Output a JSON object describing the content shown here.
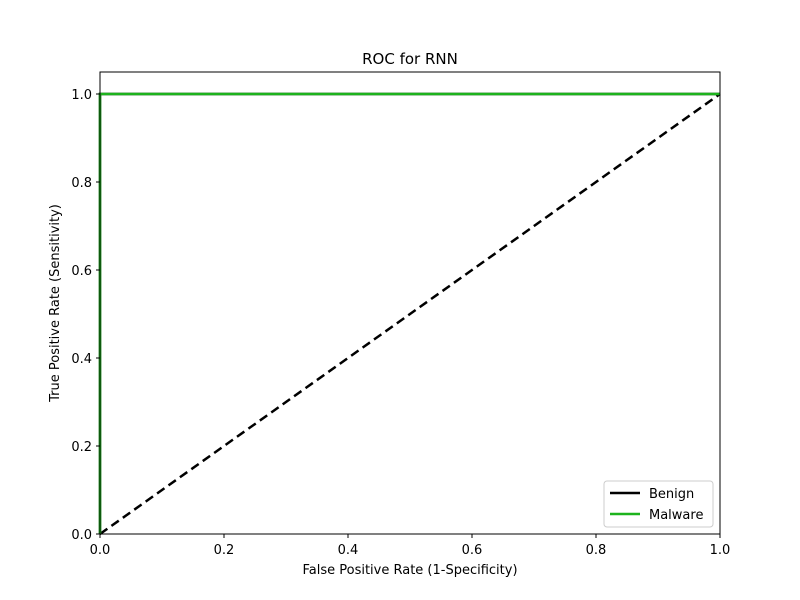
{
  "chart_data": {
    "type": "line",
    "title": "ROC for RNN",
    "xlabel": "False Positive Rate (1-Specificity)",
    "ylabel": "True Positive Rate (Sensitivity)",
    "xlim": [
      0.0,
      1.0
    ],
    "ylim": [
      0.0,
      1.05
    ],
    "xticks": [
      0.0,
      0.2,
      0.4,
      0.6,
      0.8,
      1.0
    ],
    "yticks": [
      0.0,
      0.2,
      0.4,
      0.6,
      0.8,
      1.0
    ],
    "xtick_labels": [
      "0.0",
      "0.2",
      "0.4",
      "0.6",
      "0.8",
      "1.0"
    ],
    "ytick_labels": [
      "0.0",
      "0.2",
      "0.4",
      "0.6",
      "0.8",
      "1.0"
    ],
    "grid": false,
    "legend_position": "lower-right",
    "series": [
      {
        "name": "Benign",
        "color": "#000000",
        "line_style": "solid",
        "x": [
          0.0,
          0.0,
          1.0
        ],
        "y": [
          0.0,
          1.0,
          1.0
        ]
      },
      {
        "name": "Malware",
        "color": "#1db31d",
        "line_style": "solid",
        "x": [
          0.0,
          0.0,
          1.0
        ],
        "y": [
          0.0,
          1.0,
          1.0
        ]
      }
    ],
    "reference_line": {
      "color": "#000000",
      "line_style": "dashed",
      "x": [
        0.0,
        1.0
      ],
      "y": [
        0.0,
        1.0
      ]
    }
  }
}
